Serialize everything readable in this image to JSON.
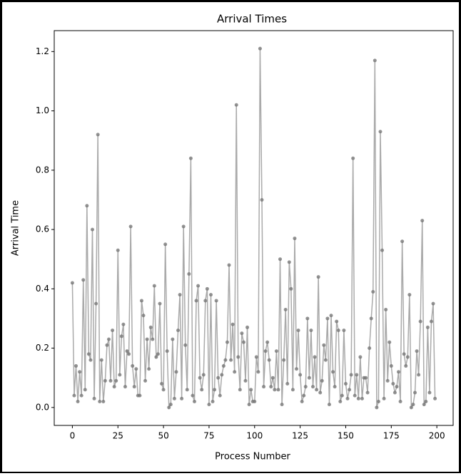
{
  "chart_data": {
    "type": "line",
    "title": "Arrival Times",
    "xlabel": "Process Number",
    "ylabel": "Arrival Time",
    "x": [
      0,
      1,
      2,
      3,
      4,
      5,
      6,
      7,
      8,
      9,
      10,
      11,
      12,
      13,
      14,
      15,
      16,
      17,
      18,
      19,
      20,
      21,
      22,
      23,
      24,
      25,
      26,
      27,
      28,
      29,
      30,
      31,
      32,
      33,
      34,
      35,
      36,
      37,
      38,
      39,
      40,
      41,
      42,
      43,
      44,
      45,
      46,
      47,
      48,
      49,
      50,
      51,
      52,
      53,
      54,
      55,
      56,
      57,
      58,
      59,
      60,
      61,
      62,
      63,
      64,
      65,
      66,
      67,
      68,
      69,
      70,
      71,
      72,
      73,
      74,
      75,
      76,
      77,
      78,
      79,
      80,
      81,
      82,
      83,
      84,
      85,
      86,
      87,
      88,
      89,
      90,
      91,
      92,
      93,
      94,
      95,
      96,
      97,
      98,
      99,
      100,
      101,
      102,
      103,
      104,
      105,
      106,
      107,
      108,
      109,
      110,
      111,
      112,
      113,
      114,
      115,
      116,
      117,
      118,
      119,
      120,
      121,
      122,
      123,
      124,
      125,
      126,
      127,
      128,
      129,
      130,
      131,
      132,
      133,
      134,
      135,
      136,
      137,
      138,
      139,
      140,
      141,
      142,
      143,
      144,
      145,
      146,
      147,
      148,
      149,
      150,
      151,
      152,
      153,
      154,
      155,
      156,
      157,
      158,
      159,
      160,
      161,
      162,
      163,
      164,
      165,
      166,
      167,
      168,
      169,
      170,
      171,
      172,
      173,
      174,
      175,
      176,
      177,
      178,
      179,
      180,
      181,
      182,
      183,
      184,
      185,
      186,
      187,
      188,
      189,
      190,
      191,
      192,
      193,
      194,
      195,
      196,
      197,
      198,
      199
    ],
    "values": [
      0.42,
      0.04,
      0.14,
      0.02,
      0.12,
      0.04,
      0.43,
      0.06,
      0.68,
      0.18,
      0.16,
      0.6,
      0.03,
      0.35,
      0.92,
      0.02,
      0.16,
      0.02,
      0.09,
      0.21,
      0.23,
      0.09,
      0.26,
      0.07,
      0.09,
      0.53,
      0.11,
      0.24,
      0.28,
      0.07,
      0.19,
      0.18,
      0.61,
      0.14,
      0.07,
      0.13,
      0.04,
      0.04,
      0.36,
      0.31,
      0.09,
      0.23,
      0.13,
      0.27,
      0.23,
      0.41,
      0.17,
      0.18,
      0.35,
      0.08,
      0.06,
      0.55,
      0.19,
      0.0,
      0.01,
      0.23,
      0.03,
      0.12,
      0.26,
      0.38,
      0.03,
      0.61,
      0.21,
      0.06,
      0.45,
      0.84,
      0.04,
      0.02,
      0.36,
      0.41,
      0.1,
      0.06,
      0.11,
      0.36,
      0.4,
      0.01,
      0.38,
      0.02,
      0.06,
      0.36,
      0.1,
      0.04,
      0.11,
      0.14,
      0.16,
      0.22,
      0.48,
      0.16,
      0.28,
      0.12,
      1.02,
      0.17,
      0.06,
      0.25,
      0.22,
      0.09,
      0.27,
      0.01,
      0.06,
      0.02,
      0.02,
      0.17,
      0.12,
      1.21,
      0.7,
      0.07,
      0.19,
      0.22,
      0.16,
      0.07,
      0.1,
      0.06,
      0.19,
      0.06,
      0.5,
      0.01,
      0.16,
      0.33,
      0.08,
      0.49,
      0.4,
      0.06,
      0.57,
      0.13,
      0.26,
      0.11,
      0.02,
      0.04,
      0.07,
      0.3,
      0.1,
      0.26,
      0.07,
      0.17,
      0.06,
      0.44,
      0.05,
      0.09,
      0.21,
      0.16,
      0.3,
      0.01,
      0.31,
      0.12,
      0.07,
      0.29,
      0.26,
      0.02,
      0.04,
      0.26,
      0.08,
      0.03,
      0.06,
      0.11,
      0.84,
      0.04,
      0.11,
      0.03,
      0.17,
      0.03,
      0.1,
      0.1,
      0.05,
      0.2,
      0.3,
      0.39,
      1.17,
      0.0,
      0.02,
      0.93,
      0.53,
      0.03,
      0.33,
      0.09,
      0.22,
      0.14,
      0.08,
      0.05,
      0.07,
      0.12,
      0.02,
      0.56,
      0.18,
      0.14,
      0.17,
      0.38,
      0.0,
      0.01,
      0.05,
      0.19,
      0.11,
      0.29,
      0.63,
      0.01,
      0.02,
      0.27,
      0.05,
      0.29,
      0.35,
      0.03
    ],
    "color": "#aaaaaa",
    "marker_color": "#777777",
    "xlim": [
      -9.95,
      208.95
    ],
    "xticks": [
      0,
      25,
      50,
      75,
      100,
      125,
      150,
      175,
      200
    ],
    "ylim": [
      -0.0605,
      1.2705
    ],
    "yticks": [
      {
        "value": 0,
        "label": "0.0"
      },
      {
        "value": 0.2,
        "label": "0.2"
      },
      {
        "value": 0.4,
        "label": "0.4"
      },
      {
        "value": 0.6,
        "label": "0.6"
      },
      {
        "value": 0.8,
        "label": "0.8"
      },
      {
        "value": 1.0,
        "label": "1.0"
      },
      {
        "value": 1.2,
        "label": "1.2"
      }
    ]
  }
}
